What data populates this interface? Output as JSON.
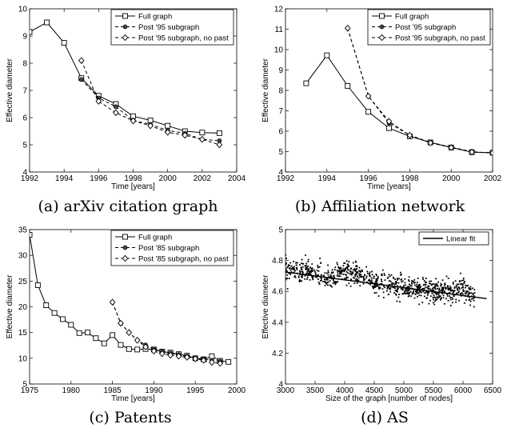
{
  "chart_data": [
    {
      "type": "line",
      "caption": "(a) arXiv citation graph",
      "xlabel": "Time [years]",
      "ylabel": "Effective diameter",
      "xlim": [
        1992,
        2004
      ],
      "ylim": [
        4,
        10
      ],
      "xticks": [
        1992,
        1994,
        1996,
        1998,
        2000,
        2002,
        2004
      ],
      "yticks": [
        4,
        5,
        6,
        7,
        8,
        9,
        10
      ],
      "legend": "top-right",
      "series": [
        {
          "name": "Full graph",
          "style": "solid",
          "marker": "square",
          "x": [
            1992,
            1993,
            1994,
            1995,
            1996,
            1997,
            1998,
            1999,
            2000,
            2001,
            2002,
            2003
          ],
          "y": [
            9.15,
            9.5,
            8.75,
            7.45,
            6.8,
            6.5,
            6.05,
            5.9,
            5.7,
            5.5,
            5.45,
            5.43
          ]
        },
        {
          "name": "Post '95 subgraph",
          "style": "dashed",
          "marker": "circle",
          "x": [
            1995,
            1996,
            1997,
            1998,
            1999,
            2000,
            2001,
            2002,
            2003
          ],
          "y": [
            7.4,
            6.72,
            6.4,
            5.9,
            5.75,
            5.53,
            5.42,
            5.2,
            5.15
          ]
        },
        {
          "name": "Post '95 subgraph, no past",
          "style": "dashed",
          "marker": "diamond",
          "x": [
            1995,
            1996,
            1997,
            1998,
            1999,
            2000,
            2001,
            2002,
            2003
          ],
          "y": [
            8.1,
            6.6,
            6.18,
            5.88,
            5.7,
            5.46,
            5.35,
            5.2,
            5.0
          ]
        }
      ]
    },
    {
      "type": "line",
      "caption": "(b) Affiliation network",
      "xlabel": "Time [years]",
      "ylabel": "Effective diameter",
      "xlim": [
        1992,
        2002
      ],
      "ylim": [
        4,
        12
      ],
      "xticks": [
        1992,
        1994,
        1996,
        1998,
        2000,
        2002
      ],
      "yticks": [
        4,
        5,
        6,
        7,
        8,
        9,
        10,
        11,
        12
      ],
      "legend": "top-right",
      "series": [
        {
          "name": "Full graph",
          "style": "solid",
          "marker": "square",
          "x": [
            1993,
            1994,
            1995,
            1996,
            1997,
            1998,
            1999,
            2000,
            2001,
            2002
          ],
          "y": [
            8.35,
            9.72,
            8.22,
            6.95,
            6.15,
            5.75,
            5.45,
            5.2,
            4.97,
            4.95
          ]
        },
        {
          "name": "Post '95 subgraph",
          "style": "dashed",
          "marker": "circle",
          "x": [
            1995,
            1996,
            1997,
            1998,
            1999,
            2000,
            2001,
            2002
          ],
          "y": [
            11.05,
            7.72,
            6.4,
            5.8,
            5.45,
            5.22,
            5.0,
            4.92
          ]
        },
        {
          "name": "Post '95 subgraph, no past",
          "style": "dashed",
          "marker": "diamond",
          "x": [
            1995,
            1996,
            1997,
            1998,
            1999,
            2000,
            2001,
            2002
          ],
          "y": [
            11.05,
            7.72,
            6.48,
            5.8,
            5.43,
            5.2,
            4.98,
            4.93
          ]
        }
      ]
    },
    {
      "type": "line",
      "caption": "(c) Patents",
      "xlabel": "Time [years]",
      "ylabel": "Effective diameter",
      "xlim": [
        1975,
        2000
      ],
      "ylim": [
        5,
        35
      ],
      "xticks": [
        1975,
        1980,
        1985,
        1990,
        1995,
        2000
      ],
      "yticks": [
        5,
        10,
        15,
        20,
        25,
        30,
        35
      ],
      "legend": "top-right",
      "series": [
        {
          "name": "Full graph",
          "style": "solid",
          "marker": "square",
          "x": [
            1975,
            1976,
            1977,
            1978,
            1979,
            1980,
            1981,
            1982,
            1983,
            1984,
            1985,
            1986,
            1987,
            1988,
            1989,
            1990,
            1991,
            1992,
            1993,
            1994,
            1995,
            1996,
            1997,
            1998,
            1999
          ],
          "y": [
            34,
            24.2,
            20.3,
            18.8,
            17.6,
            16.5,
            14.9,
            15.0,
            13.9,
            12.9,
            14.5,
            12.6,
            11.8,
            11.7,
            11.8,
            11.7,
            11.3,
            11.1,
            10.8,
            10.5,
            10.0,
            9.8,
            10.4,
            9.5,
            9.3
          ]
        },
        {
          "name": "Post '85 subgraph",
          "style": "dashed",
          "marker": "circle",
          "x": [
            1985,
            1986,
            1987,
            1988,
            1989,
            1990,
            1991,
            1992,
            1993,
            1994,
            1995,
            1996,
            1997,
            1998
          ],
          "y": [
            20.9,
            16.8,
            15.0,
            13.5,
            12.6,
            11.8,
            11.3,
            11.0,
            10.7,
            10.4,
            10.1,
            9.9,
            9.6,
            9.4
          ]
        },
        {
          "name": "Post '85 subgraph, no past",
          "style": "dashed",
          "marker": "diamond",
          "x": [
            1985,
            1986,
            1987,
            1988,
            1989,
            1990,
            1991,
            1992,
            1993,
            1994,
            1995,
            1996,
            1997,
            1998
          ],
          "y": [
            20.9,
            16.8,
            15.0,
            13.5,
            12.2,
            11.4,
            10.9,
            10.6,
            10.4,
            10.2,
            9.9,
            9.6,
            9.2,
            9.0
          ]
        }
      ]
    },
    {
      "type": "scatter",
      "caption": "(d) AS",
      "xlabel": "Size of the graph [number of nodes]",
      "ylabel": "Effective diameter",
      "xlim": [
        3000,
        6500
      ],
      "ylim": [
        4,
        5
      ],
      "xticks": [
        3000,
        3500,
        4000,
        4500,
        5000,
        5500,
        6000,
        6500
      ],
      "yticks": [
        "4",
        "4.2",
        "4.4",
        "4.6",
        "4.8",
        "5"
      ],
      "legend": "top-right",
      "scatter_trend": {
        "knots_x": [
          3000,
          3500,
          3750,
          3950,
          4200,
          4500,
          4800,
          5200,
          5500,
          5800,
          6000,
          6200
        ],
        "knots_y": [
          4.74,
          4.72,
          4.67,
          4.73,
          4.71,
          4.66,
          4.64,
          4.62,
          4.6,
          4.6,
          4.62,
          4.57
        ],
        "spread": 0.035,
        "count": 900
      },
      "series": [
        {
          "name": "Linear fit",
          "style": "solid",
          "marker": "none",
          "x": [
            3000,
            6400
          ],
          "y": [
            4.725,
            4.553
          ]
        }
      ]
    }
  ]
}
